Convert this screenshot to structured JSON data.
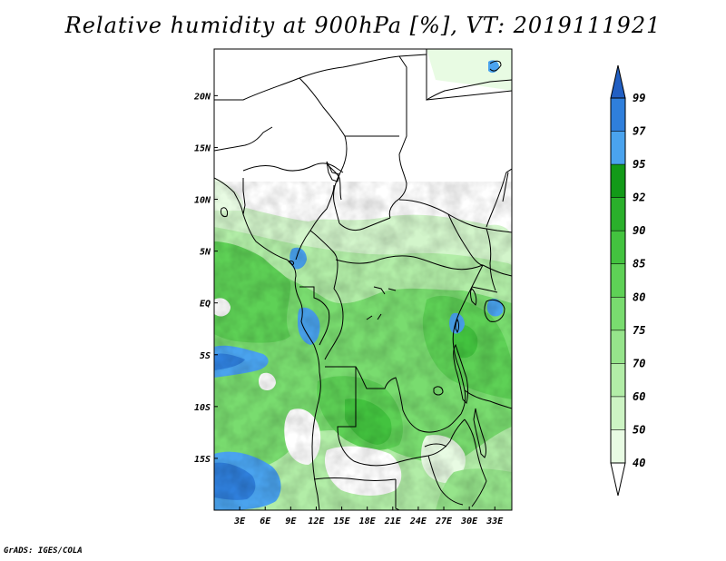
{
  "title": "Relative humidity at 900hPa [%], VT: 2019111921",
  "footer": "GrADS: IGES/COLA",
  "map": {
    "lon_ticks": [
      "3E",
      "6E",
      "9E",
      "12E",
      "15E",
      "18E",
      "21E",
      "24E",
      "27E",
      "30E",
      "33E"
    ],
    "lat_ticks": [
      "20N",
      "15N",
      "10N",
      "5N",
      "EQ",
      "5S",
      "10S",
      "15S"
    ],
    "lon_range": [
      0,
      35
    ],
    "lat_range": [
      -20,
      24.5
    ]
  },
  "colorbar": {
    "levels": [
      "40",
      "50",
      "60",
      "70",
      "75",
      "80",
      "85",
      "90",
      "92",
      "95",
      "97",
      "99"
    ],
    "colors": [
      "#ffffff",
      "#e8fbe3",
      "#cdf4c4",
      "#b2eda7",
      "#96e48b",
      "#79dc6f",
      "#5ed156",
      "#43c33f",
      "#2ab02b",
      "#129a18",
      "#4aa3ee",
      "#2f7fdc",
      "#215fc3"
    ]
  },
  "chart_data": {
    "type": "heatmap",
    "title": "Relative humidity at 900hPa [%], VT: 2019111921",
    "xlabel": "",
    "ylabel": "",
    "x_ticks": [
      "3E",
      "6E",
      "9E",
      "12E",
      "15E",
      "18E",
      "21E",
      "24E",
      "27E",
      "30E",
      "33E"
    ],
    "y_ticks": [
      "20N",
      "15N",
      "10N",
      "5N",
      "EQ",
      "5S",
      "10S",
      "15S"
    ],
    "xlim": [
      0,
      35
    ],
    "ylim": [
      -20,
      24.5
    ],
    "colorbar_levels": [
      40,
      50,
      60,
      70,
      75,
      80,
      85,
      90,
      92,
      95,
      97,
      99
    ],
    "units": "%",
    "valid_time": "2019111921"
  }
}
